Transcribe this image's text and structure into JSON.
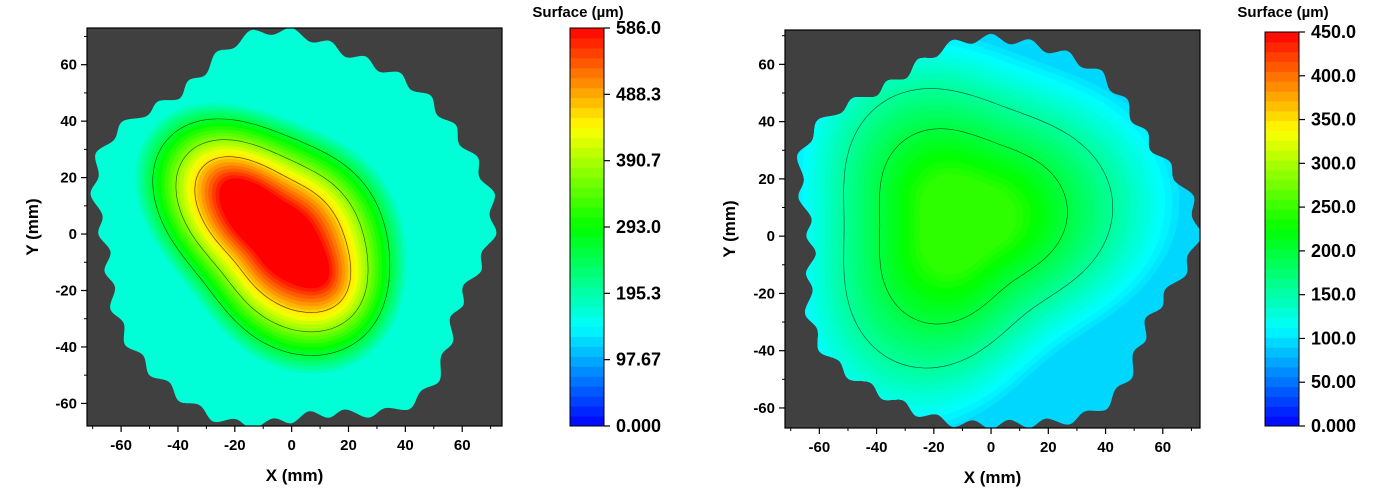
{
  "chart_data": [
    {
      "type": "heatmap",
      "subtype": "filled-contour",
      "xlabel": "X (mm)",
      "ylabel": "Y (mm)",
      "xlim": [
        -72,
        74
      ],
      "ylim": [
        -68,
        73
      ],
      "x_ticks": [
        "-60",
        "-40",
        "-20",
        "0",
        "20",
        "40",
        "60"
      ],
      "y_ticks": [
        "-60",
        "-40",
        "-20",
        "0",
        "20",
        "40",
        "60"
      ],
      "background_color": "#404040",
      "colorbar": {
        "title": "Surface (µm)",
        "min": 0,
        "max": 586,
        "labels": [
          "586.0",
          "488.3",
          "390.7",
          "293.0",
          "195.3",
          "97.67",
          "0.000"
        ],
        "colormap": [
          "#0000ff",
          "#00ffff",
          "#00ff00",
          "#ffff00",
          "#ff0000"
        ]
      },
      "field": {
        "peak_value": 586,
        "peak_center_mm": [
          -5,
          0
        ],
        "contour_levels": [
          270,
          380,
          470
        ]
      }
    },
    {
      "type": "heatmap",
      "subtype": "filled-contour",
      "xlabel": "X (mm)",
      "ylabel": "Y (mm)",
      "xlim": [
        -72,
        73
      ],
      "ylim": [
        -67,
        72
      ],
      "x_ticks": [
        "-60",
        "-40",
        "-20",
        "0",
        "20",
        "40",
        "60"
      ],
      "y_ticks": [
        "-60",
        "-40",
        "-20",
        "0",
        "20",
        "40",
        "60"
      ],
      "background_color": "#404040",
      "colorbar": {
        "title": "Surface (µm)",
        "min": 0,
        "max": 450,
        "labels": [
          "450.0",
          "400.0",
          "350.0",
          "300.0",
          "250.0",
          "200.0",
          "150.0",
          "100.0",
          "50.00",
          "0.000"
        ],
        "colormap": [
          "#0000ff",
          "#00ffff",
          "#00ff00",
          "#ffff00",
          "#ff0000"
        ]
      },
      "field": {
        "peak_value": 245,
        "peak_center_mm": [
          -10,
          5
        ],
        "contour_levels": [
          160,
          200
        ]
      }
    }
  ]
}
